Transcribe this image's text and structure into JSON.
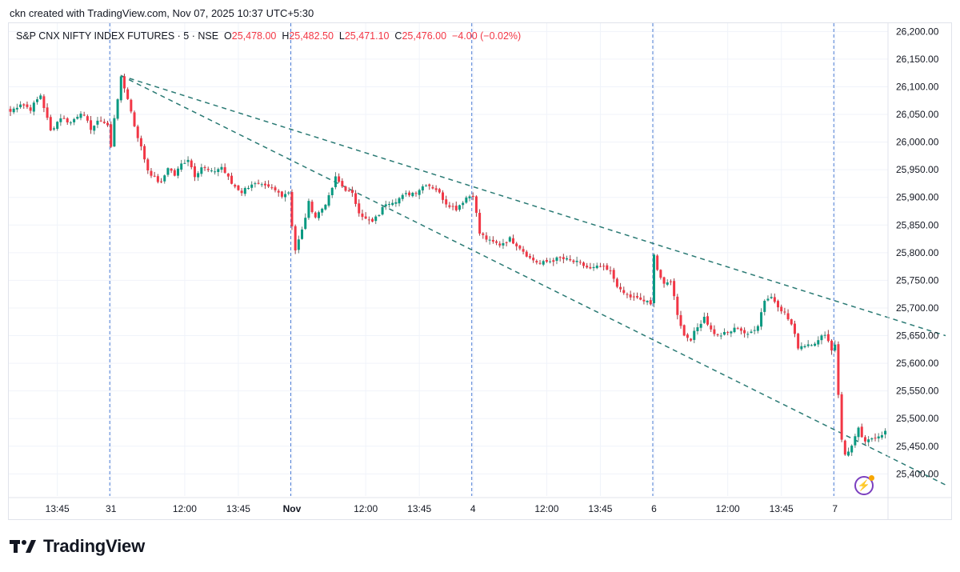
{
  "header": {
    "credit": "ckn created with TradingView.com, Nov 07, 2025 10:37 UTC+5:30"
  },
  "legend": {
    "symbol": "S&P CNX NIFTY INDEX FUTURES · 5 · NSE",
    "open_label": "O",
    "open": "25,478.00",
    "high_label": "H",
    "high": "25,482.50",
    "low_label": "L",
    "low": "25,471.10",
    "close_label": "C",
    "close": "25,476.00",
    "change": "−4.00 (−0.02%)"
  },
  "brand": {
    "name": "TradingView",
    "logo_icon": "tradingview-logo-icon"
  },
  "colors": {
    "up": "#089981",
    "down": "#f23645",
    "wick_up": "#5c7d74",
    "wick_down": "#9a3a40",
    "trendline": "#2a7a74",
    "session_line": "#4a7bd4",
    "grid": "#f0f3fa",
    "bg": "#ffffff"
  },
  "chart_data": {
    "type": "candlestick",
    "timeframe": "5",
    "exchange": "NSE",
    "ylim": [
      25360,
      26215
    ],
    "y_ticks": [
      {
        "value": 25400,
        "label": "25,400.00"
      },
      {
        "value": 25450,
        "label": "25,450.00"
      },
      {
        "value": 25500,
        "label": "25,500.00"
      },
      {
        "value": 25550,
        "label": "25,550.00"
      },
      {
        "value": 25600,
        "label": "25,600.00"
      },
      {
        "value": 25650,
        "label": "25,650.00"
      },
      {
        "value": 25700,
        "label": "25,700.00"
      },
      {
        "value": 25750,
        "label": "25,750.00"
      },
      {
        "value": 25800,
        "label": "25,800.00"
      },
      {
        "value": 25850,
        "label": "25,850.00"
      },
      {
        "value": 25900,
        "label": "25,900.00"
      },
      {
        "value": 25950,
        "label": "25,950.00"
      },
      {
        "value": 26000,
        "label": "26,000.00"
      },
      {
        "value": 26050,
        "label": "26,050.00"
      },
      {
        "value": 26100,
        "label": "26,100.00"
      },
      {
        "value": 26150,
        "label": "26,150.00"
      },
      {
        "value": 26200,
        "label": "26,200.00"
      }
    ],
    "x_ticks": [
      {
        "index": 14,
        "label": "13:45",
        "bold": false
      },
      {
        "index": 30,
        "label": "31",
        "bold": false
      },
      {
        "index": 52,
        "label": "12:00",
        "bold": false
      },
      {
        "index": 68,
        "label": "13:45",
        "bold": false
      },
      {
        "index": 84,
        "label": "Nov",
        "bold": true
      },
      {
        "index": 106,
        "label": "12:00",
        "bold": false
      },
      {
        "index": 122,
        "label": "13:45",
        "bold": false
      },
      {
        "index": 138,
        "label": "4",
        "bold": false
      },
      {
        "index": 160,
        "label": "12:00",
        "bold": false
      },
      {
        "index": 176,
        "label": "13:45",
        "bold": false
      },
      {
        "index": 192,
        "label": "6",
        "bold": false
      },
      {
        "index": 214,
        "label": "12:00",
        "bold": false
      },
      {
        "index": 230,
        "label": "13:45",
        "bold": false
      },
      {
        "index": 246,
        "label": "7",
        "bold": false
      }
    ],
    "session_breaks": [
      30,
      84,
      138,
      192,
      246
    ],
    "price_path": [
      [
        0,
        26055
      ],
      [
        3,
        26070
      ],
      [
        6,
        26060
      ],
      [
        9,
        26085
      ],
      [
        12,
        26020
      ],
      [
        15,
        26045
      ],
      [
        18,
        26035
      ],
      [
        21,
        26055
      ],
      [
        24,
        26025
      ],
      [
        27,
        26040
      ],
      [
        29,
        26030
      ],
      [
        30,
        25990
      ],
      [
        31,
        26045
      ],
      [
        33,
        26115
      ],
      [
        35,
        26080
      ],
      [
        37,
        26030
      ],
      [
        39,
        25990
      ],
      [
        41,
        25950
      ],
      [
        43,
        25935
      ],
      [
        45,
        25925
      ],
      [
        47,
        25955
      ],
      [
        49,
        25940
      ],
      [
        51,
        25960
      ],
      [
        53,
        25970
      ],
      [
        55,
        25940
      ],
      [
        57,
        25955
      ],
      [
        60,
        25945
      ],
      [
        63,
        25955
      ],
      [
        66,
        25925
      ],
      [
        69,
        25910
      ],
      [
        72,
        25925
      ],
      [
        75,
        25920
      ],
      [
        78,
        25915
      ],
      [
        81,
        25905
      ],
      [
        83,
        25910
      ],
      [
        84,
        25850
      ],
      [
        85,
        25805
      ],
      [
        87,
        25840
      ],
      [
        89,
        25890
      ],
      [
        91,
        25865
      ],
      [
        93,
        25880
      ],
      [
        95,
        25900
      ],
      [
        97,
        25935
      ],
      [
        99,
        25920
      ],
      [
        102,
        25905
      ],
      [
        104,
        25875
      ],
      [
        106,
        25860
      ],
      [
        108,
        25855
      ],
      [
        110,
        25870
      ],
      [
        112,
        25890
      ],
      [
        115,
        25895
      ],
      [
        118,
        25905
      ],
      [
        121,
        25910
      ],
      [
        124,
        25925
      ],
      [
        127,
        25915
      ],
      [
        130,
        25890
      ],
      [
        133,
        25880
      ],
      [
        136,
        25900
      ],
      [
        138,
        25905
      ],
      [
        139,
        25870
      ],
      [
        140,
        25835
      ],
      [
        143,
        25820
      ],
      [
        146,
        25815
      ],
      [
        149,
        25825
      ],
      [
        152,
        25810
      ],
      [
        155,
        25790
      ],
      [
        158,
        25780
      ],
      [
        161,
        25785
      ],
      [
        164,
        25790
      ],
      [
        167,
        25785
      ],
      [
        170,
        25780
      ],
      [
        173,
        25770
      ],
      [
        176,
        25775
      ],
      [
        179,
        25765
      ],
      [
        182,
        25730
      ],
      [
        185,
        25720
      ],
      [
        188,
        25715
      ],
      [
        190,
        25710
      ],
      [
        191,
        25705
      ],
      [
        192,
        25800
      ],
      [
        193,
        25770
      ],
      [
        195,
        25740
      ],
      [
        197,
        25750
      ],
      [
        199,
        25690
      ],
      [
        201,
        25650
      ],
      [
        203,
        25645
      ],
      [
        205,
        25665
      ],
      [
        207,
        25685
      ],
      [
        209,
        25660
      ],
      [
        211,
        25650
      ],
      [
        214,
        25655
      ],
      [
        217,
        25665
      ],
      [
        220,
        25650
      ],
      [
        223,
        25670
      ],
      [
        225,
        25715
      ],
      [
        227,
        25720
      ],
      [
        229,
        25705
      ],
      [
        231,
        25690
      ],
      [
        233,
        25670
      ],
      [
        235,
        25630
      ],
      [
        238,
        25635
      ],
      [
        241,
        25640
      ],
      [
        243,
        25655
      ],
      [
        245,
        25625
      ],
      [
        246,
        25635
      ],
      [
        247,
        25545
      ],
      [
        248,
        25460
      ],
      [
        249,
        25435
      ],
      [
        251,
        25450
      ],
      [
        253,
        25480
      ],
      [
        255,
        25455
      ],
      [
        257,
        25465
      ],
      [
        259,
        25470
      ],
      [
        261,
        25476
      ]
    ],
    "trendlines": [
      {
        "name": "upper-trendline",
        "from": [
          33,
          26120
        ],
        "to": [
          279,
          25650
        ]
      },
      {
        "name": "lower-trendline",
        "from": [
          33,
          26120
        ],
        "to": [
          279,
          25380
        ]
      }
    ]
  }
}
